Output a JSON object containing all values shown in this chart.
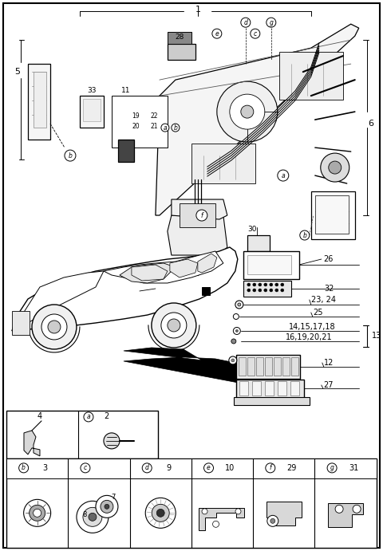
{
  "bg_color": "#ffffff",
  "fig_width": 4.8,
  "fig_height": 6.91,
  "dpi": 100,
  "label_1": "1",
  "label_5": "5",
  "label_6": "6",
  "label_11": "11",
  "label_13": "13",
  "label_19_22": "19  22",
  "label_20_21": "20  21",
  "label_23_24": "23, 24",
  "label_25": "25",
  "label_26": "26",
  "label_27": "27",
  "label_28": "28",
  "label_30": "30",
  "label_32": "32",
  "label_33": "33",
  "label_12": "12",
  "label_14": "14,15,17,18",
  "label_16": "16,19,20,21"
}
